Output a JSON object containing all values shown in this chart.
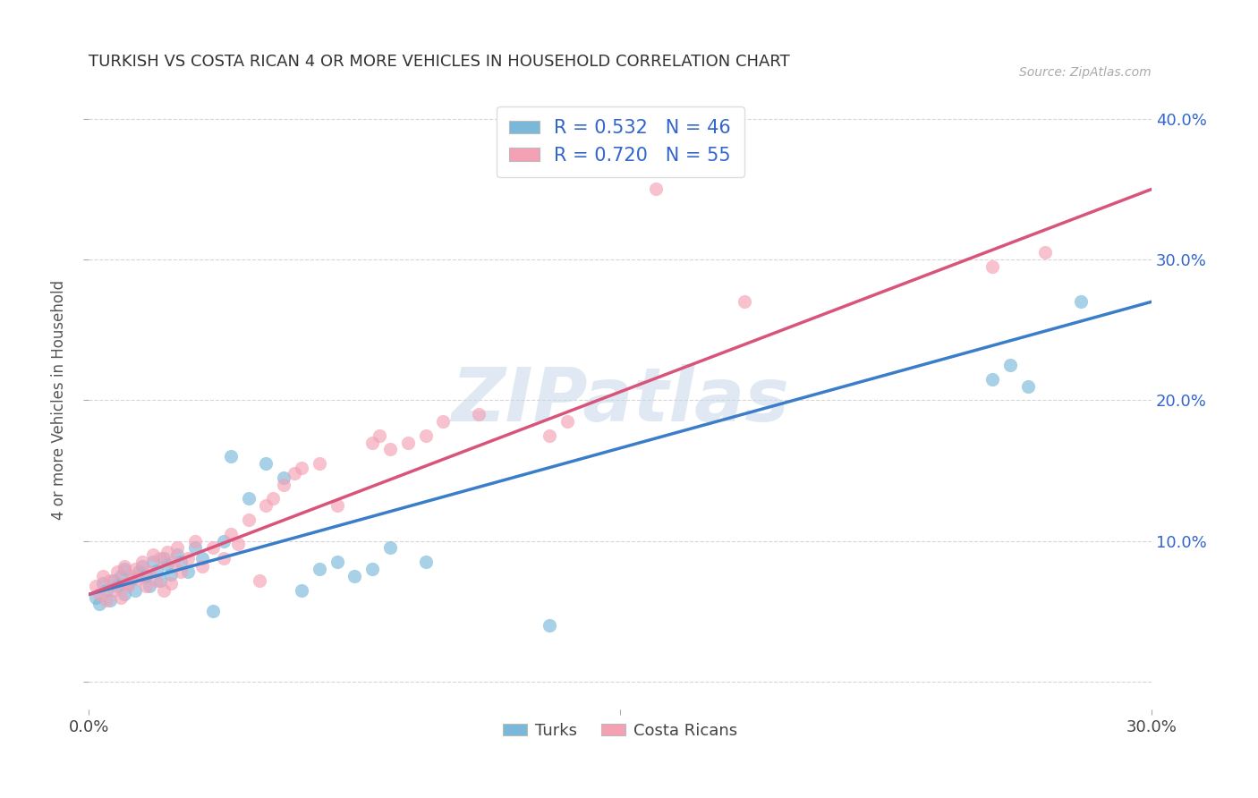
{
  "title": "TURKISH VS COSTA RICAN 4 OR MORE VEHICLES IN HOUSEHOLD CORRELATION CHART",
  "source": "Source: ZipAtlas.com",
  "ylabel": "4 or more Vehicles in Household",
  "xlim": [
    0.0,
    0.3
  ],
  "ylim": [
    -0.02,
    0.42
  ],
  "xtick_vals": [
    0.0,
    0.15,
    0.3
  ],
  "xtick_labels": [
    "0.0%",
    "",
    "30.0%"
  ],
  "ytick_vals": [
    0.0,
    0.1,
    0.2,
    0.3,
    0.4
  ],
  "ytick_labels_right": [
    "",
    "10.0%",
    "20.0%",
    "30.0%",
    "40.0%"
  ],
  "legend_r_turks": "R = 0.532",
  "legend_n_turks": "N = 46",
  "legend_r_costaricans": "R = 0.720",
  "legend_n_costaricans": "N = 55",
  "turks_color": "#7ab8d9",
  "costaricans_color": "#f4a0b5",
  "turks_line_color": "#3a7dc9",
  "costaricans_line_color": "#d9547a",
  "watermark": "ZIPatlas",
  "title_color": "#333333",
  "legend_text_color": "#3366cc",
  "turks_scatter": [
    [
      0.002,
      0.06
    ],
    [
      0.003,
      0.055
    ],
    [
      0.004,
      0.07
    ],
    [
      0.005,
      0.065
    ],
    [
      0.006,
      0.058
    ],
    [
      0.007,
      0.072
    ],
    [
      0.008,
      0.068
    ],
    [
      0.009,
      0.075
    ],
    [
      0.01,
      0.062
    ],
    [
      0.01,
      0.08
    ],
    [
      0.011,
      0.07
    ],
    [
      0.012,
      0.073
    ],
    [
      0.013,
      0.065
    ],
    [
      0.014,
      0.078
    ],
    [
      0.015,
      0.082
    ],
    [
      0.016,
      0.075
    ],
    [
      0.017,
      0.068
    ],
    [
      0.018,
      0.085
    ],
    [
      0.019,
      0.079
    ],
    [
      0.02,
      0.072
    ],
    [
      0.021,
      0.088
    ],
    [
      0.022,
      0.083
    ],
    [
      0.023,
      0.076
    ],
    [
      0.025,
      0.09
    ],
    [
      0.026,
      0.085
    ],
    [
      0.028,
      0.078
    ],
    [
      0.03,
      0.095
    ],
    [
      0.032,
      0.088
    ],
    [
      0.035,
      0.05
    ],
    [
      0.038,
      0.1
    ],
    [
      0.04,
      0.16
    ],
    [
      0.045,
      0.13
    ],
    [
      0.05,
      0.155
    ],
    [
      0.055,
      0.145
    ],
    [
      0.06,
      0.065
    ],
    [
      0.065,
      0.08
    ],
    [
      0.07,
      0.085
    ],
    [
      0.075,
      0.075
    ],
    [
      0.08,
      0.08
    ],
    [
      0.085,
      0.095
    ],
    [
      0.095,
      0.085
    ],
    [
      0.13,
      0.04
    ],
    [
      0.255,
      0.215
    ],
    [
      0.26,
      0.225
    ],
    [
      0.265,
      0.21
    ],
    [
      0.28,
      0.27
    ]
  ],
  "costaricans_scatter": [
    [
      0.002,
      0.068
    ],
    [
      0.003,
      0.062
    ],
    [
      0.004,
      0.075
    ],
    [
      0.005,
      0.058
    ],
    [
      0.006,
      0.072
    ],
    [
      0.007,
      0.065
    ],
    [
      0.008,
      0.078
    ],
    [
      0.009,
      0.06
    ],
    [
      0.01,
      0.082
    ],
    [
      0.01,
      0.07
    ],
    [
      0.011,
      0.068
    ],
    [
      0.012,
      0.075
    ],
    [
      0.013,
      0.08
    ],
    [
      0.014,
      0.073
    ],
    [
      0.015,
      0.085
    ],
    [
      0.016,
      0.068
    ],
    [
      0.017,
      0.078
    ],
    [
      0.018,
      0.09
    ],
    [
      0.019,
      0.072
    ],
    [
      0.02,
      0.088
    ],
    [
      0.021,
      0.065
    ],
    [
      0.022,
      0.092
    ],
    [
      0.023,
      0.07
    ],
    [
      0.024,
      0.085
    ],
    [
      0.025,
      0.095
    ],
    [
      0.026,
      0.078
    ],
    [
      0.028,
      0.088
    ],
    [
      0.03,
      0.1
    ],
    [
      0.032,
      0.082
    ],
    [
      0.035,
      0.095
    ],
    [
      0.038,
      0.088
    ],
    [
      0.04,
      0.105
    ],
    [
      0.042,
      0.098
    ],
    [
      0.045,
      0.115
    ],
    [
      0.048,
      0.072
    ],
    [
      0.05,
      0.125
    ],
    [
      0.052,
      0.13
    ],
    [
      0.055,
      0.14
    ],
    [
      0.058,
      0.148
    ],
    [
      0.06,
      0.152
    ],
    [
      0.065,
      0.155
    ],
    [
      0.07,
      0.125
    ],
    [
      0.08,
      0.17
    ],
    [
      0.082,
      0.175
    ],
    [
      0.085,
      0.165
    ],
    [
      0.09,
      0.17
    ],
    [
      0.095,
      0.175
    ],
    [
      0.1,
      0.185
    ],
    [
      0.11,
      0.19
    ],
    [
      0.13,
      0.175
    ],
    [
      0.135,
      0.185
    ],
    [
      0.16,
      0.35
    ],
    [
      0.185,
      0.27
    ],
    [
      0.255,
      0.295
    ],
    [
      0.27,
      0.305
    ]
  ],
  "turks_line": [
    [
      0.0,
      0.062
    ],
    [
      0.3,
      0.27
    ]
  ],
  "costaricans_line": [
    [
      0.0,
      0.062
    ],
    [
      0.3,
      0.35
    ]
  ]
}
